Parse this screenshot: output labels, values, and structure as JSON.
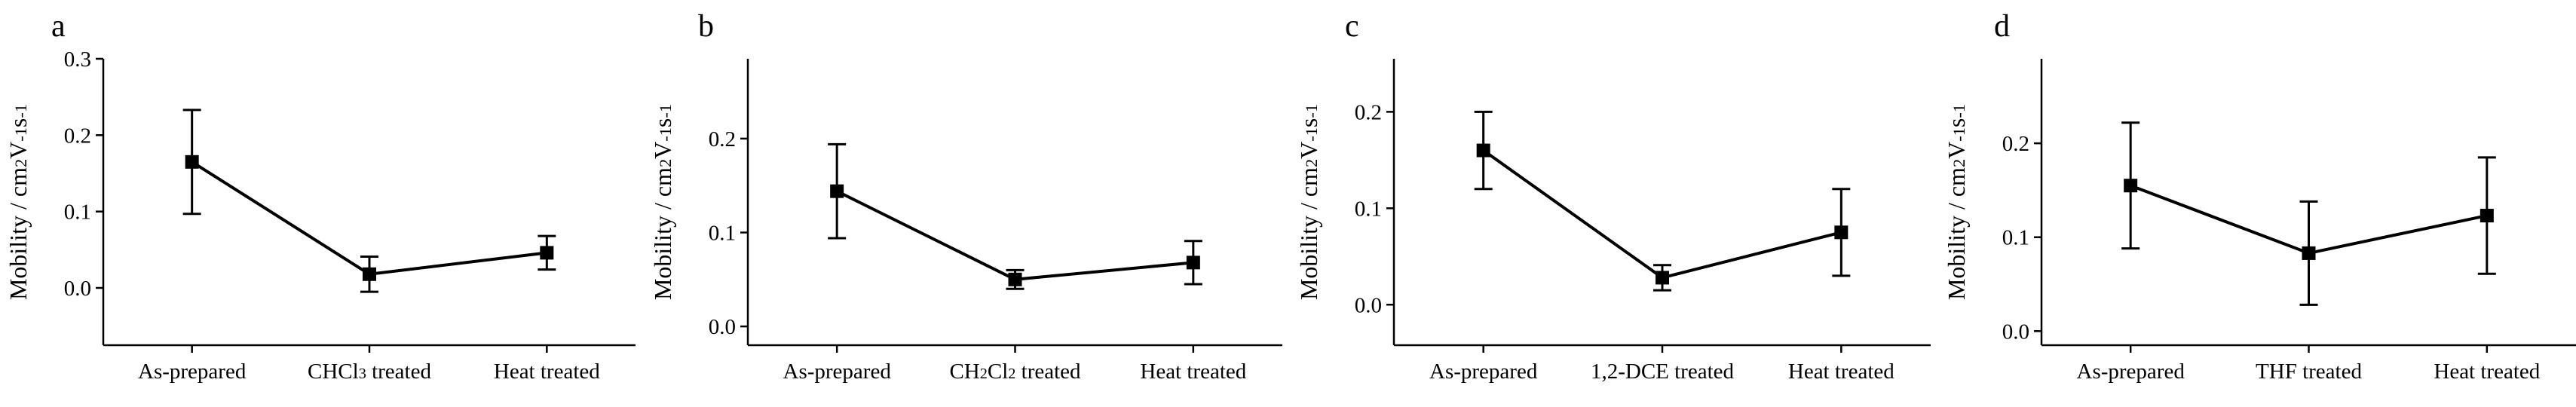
{
  "chart_data": [
    {
      "type": "line",
      "panel": "a",
      "categories": [
        "As-prepared",
        "CHCl3 treated",
        "Heat treated"
      ],
      "category_parts": [
        [
          [
            "As-prepared",
            false
          ]
        ],
        [
          [
            "CHCl",
            false
          ],
          [
            "3",
            true
          ],
          [
            " treated",
            false
          ]
        ],
        [
          [
            "Heat treated",
            false
          ]
        ]
      ],
      "values": [
        0.165,
        0.018,
        0.046
      ],
      "errors": [
        0.068,
        0.023,
        0.022
      ],
      "ylabel_parts": [
        [
          "Mobility / cm",
          false
        ],
        [
          "2",
          true
        ],
        [
          "V",
          false
        ],
        [
          "-1",
          true
        ],
        [
          "s",
          false
        ],
        [
          "-1",
          true
        ]
      ],
      "ylim": [
        -0.075,
        0.3
      ],
      "yticks": [
        0.0,
        0.1,
        0.2,
        0.3
      ],
      "ytick_labels": [
        "0.0",
        "0.1",
        "0.2",
        "0.3"
      ],
      "grid": false
    },
    {
      "type": "line",
      "panel": "b",
      "categories": [
        "As-prepared",
        "CH2Cl2 treated",
        "Heat treated"
      ],
      "category_parts": [
        [
          [
            "As-prepared",
            false
          ]
        ],
        [
          [
            "CH",
            false
          ],
          [
            "2",
            true
          ],
          [
            "Cl",
            false
          ],
          [
            "2",
            true
          ],
          [
            " treated",
            false
          ]
        ],
        [
          [
            "Heat treated",
            false
          ]
        ]
      ],
      "values": [
        0.144,
        0.05,
        0.068
      ],
      "errors": [
        0.05,
        0.01,
        0.023
      ],
      "ylabel_parts": [
        [
          "Mobility / cm",
          false
        ],
        [
          "2",
          true
        ],
        [
          "V",
          false
        ],
        [
          "-1",
          true
        ],
        [
          "s",
          false
        ],
        [
          "-1",
          true
        ]
      ],
      "ylim": [
        -0.02,
        0.285
      ],
      "yticks": [
        0.0,
        0.1,
        0.2
      ],
      "ytick_labels": [
        "0.0",
        "0.1",
        "0.2"
      ],
      "grid": false
    },
    {
      "type": "line",
      "panel": "c",
      "categories": [
        "As-prepared",
        "1,2-DCE treated",
        "Heat treated"
      ],
      "category_parts": [
        [
          [
            "As-prepared",
            false
          ]
        ],
        [
          [
            "1,2-DCE treated",
            false
          ]
        ],
        [
          [
            "Heat treated",
            false
          ]
        ]
      ],
      "values": [
        0.16,
        0.028,
        0.075
      ],
      "errors": [
        0.04,
        0.013,
        0.045
      ],
      "ylabel_parts": [
        [
          "Mobility / cm",
          false
        ],
        [
          "2",
          true
        ],
        [
          "V",
          false
        ],
        [
          "-1",
          true
        ],
        [
          "s",
          false
        ],
        [
          "-1",
          true
        ]
      ],
      "ylim": [
        -0.042,
        0.255
      ],
      "yticks": [
        0.0,
        0.1,
        0.2
      ],
      "ytick_labels": [
        "0.0",
        "0.1",
        "0.2"
      ],
      "grid": false
    },
    {
      "type": "line",
      "panel": "d",
      "categories": [
        "As-prepared",
        "THF treated",
        "Heat treated"
      ],
      "category_parts": [
        [
          [
            "As-prepared",
            false
          ]
        ],
        [
          [
            "THF treated",
            false
          ]
        ],
        [
          [
            "Heat treated",
            false
          ]
        ]
      ],
      "values": [
        0.155,
        0.083,
        0.123
      ],
      "errors": [
        0.067,
        0.055,
        0.062
      ],
      "ylabel_parts": [
        [
          "Mobility / cm",
          false
        ],
        [
          "2",
          true
        ],
        [
          "V",
          false
        ],
        [
          "-1",
          true
        ],
        [
          "s",
          false
        ],
        [
          "-1",
          true
        ]
      ],
      "ylim": [
        -0.015,
        0.29
      ],
      "yticks": [
        0.0,
        0.1,
        0.2
      ],
      "ytick_labels": [
        "0.0",
        "0.1",
        "0.2"
      ],
      "grid": false
    }
  ]
}
